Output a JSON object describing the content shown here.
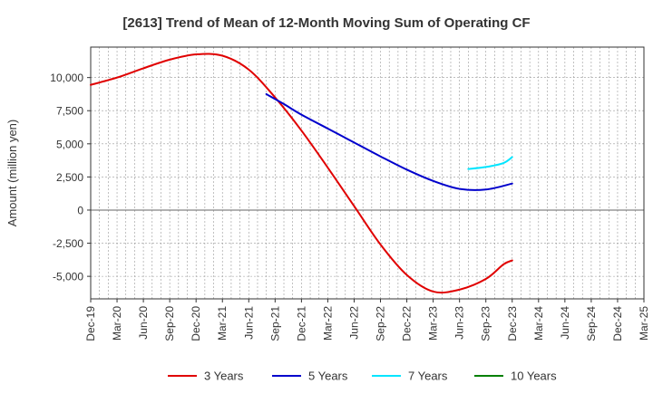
{
  "chart_data": {
    "type": "line",
    "title": "[2613]  Trend of Mean of 12-Month Moving Sum of Operating CF",
    "xlabel": "",
    "ylabel": "Amount (million yen)",
    "ylim": [
      -6700,
      12300
    ],
    "yticks": [
      {
        "value": 10000,
        "label": "10,000"
      },
      {
        "value": 7500,
        "label": "7,500"
      },
      {
        "value": 5000,
        "label": "5,000"
      },
      {
        "value": 2500,
        "label": "2,500"
      },
      {
        "value": 0,
        "label": "0"
      },
      {
        "value": -2500,
        "label": "-2,500"
      },
      {
        "value": -5000,
        "label": "-5,000"
      }
    ],
    "x_tick_labels": [
      "Dec-19",
      "Mar-20",
      "Jun-20",
      "Sep-20",
      "Dec-20",
      "Mar-21",
      "Jun-21",
      "Sep-21",
      "Dec-21",
      "Mar-22",
      "Jun-22",
      "Sep-22",
      "Dec-22",
      "Mar-23",
      "Jun-23",
      "Sep-23",
      "Dec-23",
      "Mar-24",
      "Jun-24",
      "Sep-24",
      "Dec-24",
      "Mar-25"
    ],
    "x_range_months": [
      0,
      63
    ],
    "series": [
      {
        "name": "3 Years",
        "color": "#e00000",
        "points": [
          [
            0,
            9450
          ],
          [
            3,
            10000
          ],
          [
            6,
            10700
          ],
          [
            9,
            11350
          ],
          [
            12,
            11750
          ],
          [
            15,
            11650
          ],
          [
            18,
            10600
          ],
          [
            21,
            8500
          ],
          [
            24,
            6000
          ],
          [
            27,
            3200
          ],
          [
            30,
            300
          ],
          [
            33,
            -2600
          ],
          [
            36,
            -4900
          ],
          [
            39,
            -6150
          ],
          [
            42,
            -6000
          ],
          [
            45,
            -5200
          ],
          [
            47,
            -4100
          ],
          [
            48,
            -3800
          ]
        ]
      },
      {
        "name": "5 Years",
        "color": "#0000cc",
        "points": [
          [
            20,
            8750
          ],
          [
            22,
            8000
          ],
          [
            24,
            7200
          ],
          [
            27,
            6150
          ],
          [
            30,
            5100
          ],
          [
            33,
            4050
          ],
          [
            36,
            3050
          ],
          [
            39,
            2200
          ],
          [
            42,
            1600
          ],
          [
            45,
            1550
          ],
          [
            48,
            2000
          ]
        ]
      },
      {
        "name": "7 Years",
        "color": "#00e5ff",
        "points": [
          [
            43,
            3100
          ],
          [
            45,
            3250
          ],
          [
            47,
            3550
          ],
          [
            48,
            4000
          ]
        ]
      },
      {
        "name": "10 Years",
        "color": "#008000",
        "points": []
      }
    ],
    "legend_position": "bottom",
    "grid": true
  }
}
